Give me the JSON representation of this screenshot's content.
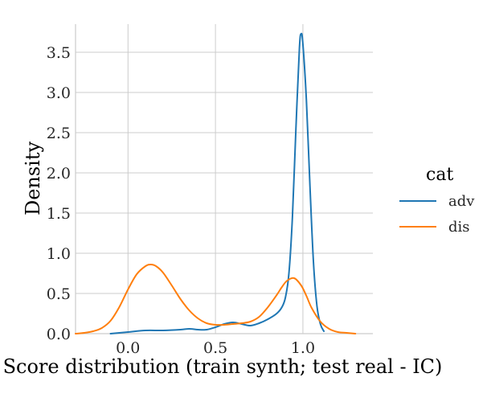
{
  "chart_data": {
    "type": "line",
    "xlabel": "Score distribution (train synth; test real - IC)",
    "ylabel": "Density",
    "xlim": [
      -0.3,
      1.4
    ],
    "ylim": [
      0,
      3.85
    ],
    "x_ticks": [
      "0.0",
      "0.5",
      "1.0"
    ],
    "x_tick_values": [
      0.0,
      0.5,
      1.0
    ],
    "y_ticks": [
      "0.0",
      "0.5",
      "1.0",
      "1.5",
      "2.0",
      "2.5",
      "3.0",
      "3.5"
    ],
    "y_tick_values": [
      0.0,
      0.5,
      1.0,
      1.5,
      2.0,
      2.5,
      3.0,
      3.5
    ],
    "grid": true,
    "legend": {
      "title": "cat",
      "position": "right"
    },
    "series": [
      {
        "name": "adv",
        "color": "#1f77b4",
        "x": [
          -0.1,
          0.0,
          0.1,
          0.2,
          0.3,
          0.35,
          0.4,
          0.45,
          0.5,
          0.55,
          0.6,
          0.65,
          0.7,
          0.75,
          0.8,
          0.85,
          0.88,
          0.9,
          0.92,
          0.94,
          0.96,
          0.98,
          0.99,
          1.0,
          1.02,
          1.04,
          1.06,
          1.08,
          1.1,
          1.12
        ],
        "y": [
          0.0,
          0.02,
          0.04,
          0.04,
          0.05,
          0.06,
          0.05,
          0.05,
          0.08,
          0.12,
          0.14,
          0.12,
          0.1,
          0.13,
          0.18,
          0.25,
          0.33,
          0.45,
          0.75,
          1.45,
          2.55,
          3.55,
          3.73,
          3.6,
          2.9,
          1.85,
          0.9,
          0.35,
          0.12,
          0.03
        ]
      },
      {
        "name": "dis",
        "color": "#ff7f0e",
        "x": [
          -0.3,
          -0.25,
          -0.2,
          -0.15,
          -0.1,
          -0.05,
          0.0,
          0.05,
          0.1,
          0.13,
          0.16,
          0.2,
          0.25,
          0.3,
          0.35,
          0.4,
          0.45,
          0.5,
          0.55,
          0.6,
          0.65,
          0.7,
          0.75,
          0.8,
          0.85,
          0.88,
          0.91,
          0.95,
          0.99,
          1.02,
          1.05,
          1.1,
          1.15,
          1.2,
          1.25,
          1.3
        ],
        "y": [
          0.0,
          0.01,
          0.03,
          0.07,
          0.16,
          0.33,
          0.55,
          0.74,
          0.84,
          0.86,
          0.84,
          0.76,
          0.6,
          0.43,
          0.29,
          0.19,
          0.13,
          0.11,
          0.11,
          0.12,
          0.13,
          0.15,
          0.21,
          0.33,
          0.48,
          0.58,
          0.66,
          0.69,
          0.6,
          0.47,
          0.32,
          0.15,
          0.06,
          0.02,
          0.01,
          0.0
        ]
      }
    ]
  }
}
